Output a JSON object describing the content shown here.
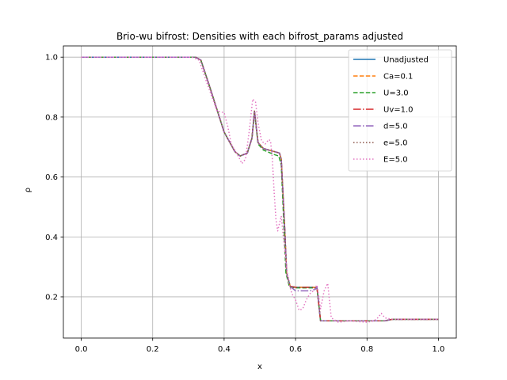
{
  "chart_data": {
    "type": "line",
    "title": "Brio-wu bifrost: Densities with each bifrost_params adjusted",
    "xlabel": "x",
    "ylabel": "ρ",
    "xlim": [
      -0.05,
      1.05
    ],
    "ylim": [
      0.0625,
      1.0375
    ],
    "xticks": [
      0.0,
      0.2,
      0.4,
      0.6,
      0.8,
      1.0
    ],
    "xtick_labels": [
      "0.0",
      "0.2",
      "0.4",
      "0.6",
      "0.8",
      "1.0"
    ],
    "yticks": [
      0.2,
      0.4,
      0.6,
      0.8,
      1.0
    ],
    "ytick_labels": [
      "0.2",
      "0.4",
      "0.6",
      "0.8",
      "1.0"
    ],
    "grid": true,
    "legend_position": "upper right",
    "series": [
      {
        "name": "Unadjusted",
        "color": "#1f77b4",
        "style": "solid",
        "x": [
          0.0,
          0.32,
          0.335,
          0.36,
          0.4,
          0.43,
          0.445,
          0.465,
          0.478,
          0.485,
          0.495,
          0.51,
          0.54,
          0.555,
          0.56,
          0.57,
          0.575,
          0.585,
          0.6,
          0.65,
          0.66,
          0.665,
          0.67,
          0.7,
          0.8,
          0.85,
          0.87,
          1.0
        ],
        "y": [
          1.0,
          1.0,
          0.99,
          0.9,
          0.75,
          0.685,
          0.67,
          0.68,
          0.73,
          0.82,
          0.715,
          0.695,
          0.685,
          0.68,
          0.66,
          0.42,
          0.28,
          0.235,
          0.232,
          0.232,
          0.23,
          0.175,
          0.12,
          0.12,
          0.12,
          0.12,
          0.125,
          0.125
        ]
      },
      {
        "name": "Ca=0.1",
        "color": "#ff7f0e",
        "style": "dashed",
        "x": [
          0.0,
          0.32,
          0.335,
          0.36,
          0.4,
          0.43,
          0.445,
          0.465,
          0.478,
          0.485,
          0.495,
          0.51,
          0.54,
          0.555,
          0.56,
          0.57,
          0.575,
          0.585,
          0.6,
          0.65,
          0.66,
          0.665,
          0.67,
          0.7,
          0.8,
          0.85,
          0.87,
          1.0
        ],
        "y": [
          1.0,
          1.0,
          0.99,
          0.9,
          0.75,
          0.685,
          0.67,
          0.68,
          0.73,
          0.82,
          0.715,
          0.695,
          0.685,
          0.68,
          0.66,
          0.42,
          0.28,
          0.235,
          0.232,
          0.232,
          0.23,
          0.175,
          0.12,
          0.12,
          0.12,
          0.12,
          0.125,
          0.125
        ]
      },
      {
        "name": "U=3.0",
        "color": "#2ca02c",
        "style": "dashed",
        "x": [
          0.0,
          0.32,
          0.335,
          0.36,
          0.4,
          0.43,
          0.445,
          0.465,
          0.478,
          0.485,
          0.495,
          0.51,
          0.54,
          0.553,
          0.56,
          0.568,
          0.573,
          0.583,
          0.6,
          0.65,
          0.66,
          0.665,
          0.67,
          0.7,
          0.8,
          0.85,
          0.87,
          1.0
        ],
        "y": [
          1.0,
          1.0,
          0.99,
          0.9,
          0.75,
          0.685,
          0.67,
          0.68,
          0.73,
          0.815,
          0.71,
          0.69,
          0.675,
          0.67,
          0.64,
          0.42,
          0.28,
          0.232,
          0.23,
          0.23,
          0.228,
          0.175,
          0.12,
          0.12,
          0.12,
          0.12,
          0.125,
          0.125
        ]
      },
      {
        "name": "Uv=1.0",
        "color": "#d62728",
        "style": "dashdot",
        "x": [
          0.0,
          0.32,
          0.335,
          0.36,
          0.4,
          0.43,
          0.445,
          0.465,
          0.478,
          0.485,
          0.495,
          0.51,
          0.54,
          0.555,
          0.56,
          0.57,
          0.575,
          0.585,
          0.6,
          0.65,
          0.66,
          0.665,
          0.67,
          0.7,
          0.8,
          0.85,
          0.87,
          1.0
        ],
        "y": [
          1.0,
          1.0,
          0.99,
          0.9,
          0.75,
          0.685,
          0.67,
          0.68,
          0.73,
          0.82,
          0.715,
          0.695,
          0.685,
          0.68,
          0.66,
          0.42,
          0.28,
          0.235,
          0.232,
          0.232,
          0.23,
          0.175,
          0.12,
          0.12,
          0.12,
          0.12,
          0.125,
          0.125
        ]
      },
      {
        "name": "d=5.0",
        "color": "#9467bd",
        "style": "dashdot",
        "x": [
          0.0,
          0.32,
          0.335,
          0.36,
          0.4,
          0.43,
          0.445,
          0.465,
          0.478,
          0.485,
          0.495,
          0.51,
          0.54,
          0.555,
          0.56,
          0.57,
          0.575,
          0.585,
          0.6,
          0.64,
          0.655,
          0.66,
          0.665,
          0.67,
          0.7,
          0.8,
          0.85,
          0.87,
          1.0
        ],
        "y": [
          1.0,
          1.0,
          0.99,
          0.9,
          0.75,
          0.685,
          0.67,
          0.68,
          0.73,
          0.82,
          0.715,
          0.695,
          0.685,
          0.68,
          0.66,
          0.42,
          0.28,
          0.235,
          0.22,
          0.22,
          0.225,
          0.232,
          0.175,
          0.12,
          0.12,
          0.12,
          0.12,
          0.125,
          0.125
        ]
      },
      {
        "name": "e=5.0",
        "color": "#8c564b",
        "style": "dotted",
        "x": [
          0.0,
          0.32,
          0.335,
          0.36,
          0.4,
          0.43,
          0.445,
          0.465,
          0.478,
          0.485,
          0.495,
          0.51,
          0.54,
          0.555,
          0.56,
          0.57,
          0.575,
          0.585,
          0.6,
          0.65,
          0.66,
          0.665,
          0.67,
          0.7,
          0.8,
          0.85,
          0.87,
          1.0
        ],
        "y": [
          1.0,
          1.0,
          0.99,
          0.9,
          0.75,
          0.685,
          0.67,
          0.68,
          0.73,
          0.82,
          0.715,
          0.695,
          0.685,
          0.68,
          0.66,
          0.42,
          0.28,
          0.235,
          0.232,
          0.232,
          0.23,
          0.175,
          0.12,
          0.12,
          0.12,
          0.12,
          0.125,
          0.125
        ]
      },
      {
        "name": "E=5.0",
        "color": "#e377c2",
        "style": "dotted",
        "x": [
          0.0,
          0.31,
          0.33,
          0.35,
          0.38,
          0.4,
          0.41,
          0.42,
          0.435,
          0.45,
          0.46,
          0.47,
          0.48,
          0.488,
          0.495,
          0.505,
          0.515,
          0.525,
          0.53,
          0.535,
          0.54,
          0.545,
          0.55,
          0.56,
          0.57,
          0.58,
          0.59,
          0.6,
          0.61,
          0.62,
          0.63,
          0.64,
          0.65,
          0.66,
          0.67,
          0.68,
          0.69,
          0.7,
          0.72,
          0.75,
          0.8,
          0.82,
          0.83,
          0.84,
          0.85,
          0.87,
          0.9,
          1.0
        ],
        "y": [
          1.0,
          1.0,
          0.99,
          0.92,
          0.82,
          0.815,
          0.77,
          0.71,
          0.68,
          0.645,
          0.66,
          0.75,
          0.86,
          0.85,
          0.78,
          0.72,
          0.71,
          0.725,
          0.72,
          0.66,
          0.55,
          0.46,
          0.42,
          0.47,
          0.35,
          0.25,
          0.21,
          0.19,
          0.155,
          0.16,
          0.19,
          0.21,
          0.22,
          0.24,
          0.16,
          0.22,
          0.245,
          0.13,
          0.115,
          0.12,
          0.115,
          0.12,
          0.13,
          0.145,
          0.13,
          0.125,
          0.125,
          0.125
        ]
      }
    ]
  }
}
